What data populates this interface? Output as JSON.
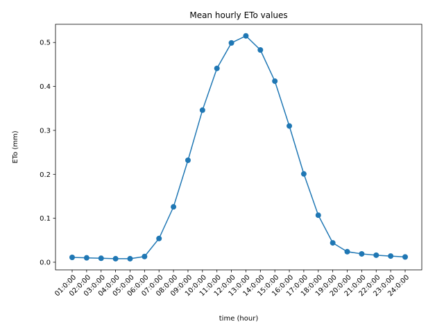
{
  "chart_data": {
    "type": "line",
    "title": "Mean hourly ETo values",
    "xlabel": "time (hour)",
    "ylabel": "ETo (mm)",
    "categories": [
      "01:0:00",
      "02:0:00",
      "03:0:00",
      "04:0:00",
      "05:0:00",
      "06:0:00",
      "07:0:00",
      "08:0:00",
      "09:0:00",
      "10:0:00",
      "11:0:00",
      "12:0:00",
      "13:0:00",
      "14:0:00",
      "15:0:00",
      "16:0:00",
      "17:0:00",
      "18:0:00",
      "19:0:00",
      "20:0:00",
      "21:0:00",
      "22:0:00",
      "23:0:00",
      "24:0:00"
    ],
    "series": [
      {
        "values": [
          0.011,
          0.01,
          0.009,
          0.008,
          0.008,
          0.013,
          0.054,
          0.126,
          0.232,
          0.346,
          0.441,
          0.499,
          0.515,
          0.483,
          0.412,
          0.31,
          0.201,
          0.107,
          0.044,
          0.024,
          0.019,
          0.016,
          0.014,
          0.012
        ],
        "color": "#1f77b4"
      }
    ],
    "yticks": [
      "0.0",
      "0.1",
      "0.2",
      "0.3",
      "0.4",
      "0.5"
    ],
    "ylim": [
      -0.0174,
      0.5414
    ],
    "grid": false,
    "legend": "none"
  }
}
